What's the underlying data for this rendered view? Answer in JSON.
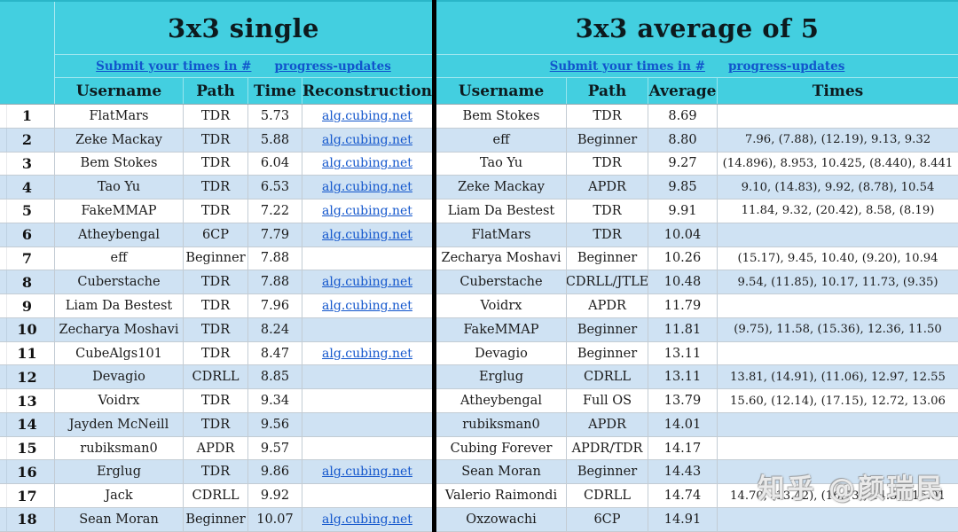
{
  "watermark": "知乎 @颜瑞民",
  "colors": {
    "header_cyan": "#43cfe0",
    "stripe_blue": "#cfe2f3",
    "link_blue": "#1155cc",
    "divider_black": "#000000"
  },
  "left_table": {
    "title": "3x3 single",
    "submit_link": "Submit your times in #",
    "channel_link": "progress-updates",
    "columns": [
      "Username",
      "Path",
      "Time",
      "Reconstruction"
    ],
    "reconstruction_link_label": "alg.cubing.net",
    "rows": [
      {
        "rank": "1",
        "username": "FlatMars",
        "path": "TDR",
        "time": "5.73",
        "reconstruction": true
      },
      {
        "rank": "2",
        "username": "Zeke Mackay",
        "path": "TDR",
        "time": "5.88",
        "reconstruction": true
      },
      {
        "rank": "3",
        "username": "Bem Stokes",
        "path": "TDR",
        "time": "6.04",
        "reconstruction": true
      },
      {
        "rank": "4",
        "username": "Tao Yu",
        "path": "TDR",
        "time": "6.53",
        "reconstruction": true
      },
      {
        "rank": "5",
        "username": "FakeMMAP",
        "path": "TDR",
        "time": "7.22",
        "reconstruction": true
      },
      {
        "rank": "6",
        "username": "Atheybengal",
        "path": "6CP",
        "time": "7.79",
        "reconstruction": true
      },
      {
        "rank": "7",
        "username": "eff",
        "path": "Beginner",
        "time": "7.88",
        "reconstruction": false
      },
      {
        "rank": "8",
        "username": "Cuberstache",
        "path": "TDR",
        "time": "7.88",
        "reconstruction": true
      },
      {
        "rank": "9",
        "username": "Liam Da Bestest",
        "path": "TDR",
        "time": "7.96",
        "reconstruction": true
      },
      {
        "rank": "10",
        "username": "Zecharya Moshavi",
        "path": "TDR",
        "time": "8.24",
        "reconstruction": false
      },
      {
        "rank": "11",
        "username": "CubeAlgs101",
        "path": "TDR",
        "time": "8.47",
        "reconstruction": true
      },
      {
        "rank": "12",
        "username": "Devagio",
        "path": "CDRLL",
        "time": "8.85",
        "reconstruction": false
      },
      {
        "rank": "13",
        "username": "Voidrx",
        "path": "TDR",
        "time": "9.34",
        "reconstruction": false
      },
      {
        "rank": "14",
        "username": "Jayden McNeill",
        "path": "TDR",
        "time": "9.56",
        "reconstruction": false
      },
      {
        "rank": "15",
        "username": "rubiksman0",
        "path": "APDR",
        "time": "9.57",
        "reconstruction": false
      },
      {
        "rank": "16",
        "username": "Erglug",
        "path": "TDR",
        "time": "9.86",
        "reconstruction": true
      },
      {
        "rank": "17",
        "username": "Jack",
        "path": "CDRLL",
        "time": "9.92",
        "reconstruction": false
      },
      {
        "rank": "18",
        "username": "Sean Moran",
        "path": "Beginner",
        "time": "10.07",
        "reconstruction": true
      }
    ]
  },
  "right_table": {
    "title": "3x3 average of 5",
    "submit_link": "Submit your times in #",
    "channel_link": "progress-updates",
    "columns": [
      "Username",
      "Path",
      "Average",
      "Times"
    ],
    "rows": [
      {
        "username": "Bem Stokes",
        "path": "TDR",
        "average": "8.69",
        "times": ""
      },
      {
        "username": "eff",
        "path": "Beginner",
        "average": "8.80",
        "times": "7.96, (7.88), (12.19), 9.13, 9.32"
      },
      {
        "username": "Tao Yu",
        "path": "TDR",
        "average": "9.27",
        "times": "(14.896), 8.953, 10.425, (8.440), 8.441"
      },
      {
        "username": "Zeke Mackay",
        "path": "APDR",
        "average": "9.85",
        "times": "9.10, (14.83), 9.92, (8.78), 10.54"
      },
      {
        "username": "Liam Da Bestest",
        "path": "TDR",
        "average": "9.91",
        "times": "11.84, 9.32, (20.42), 8.58, (8.19)"
      },
      {
        "username": "FlatMars",
        "path": "TDR",
        "average": "10.04",
        "times": ""
      },
      {
        "username": "Zecharya Moshavi",
        "path": "Beginner",
        "average": "10.26",
        "times": "(15.17), 9.45, 10.40, (9.20), 10.94"
      },
      {
        "username": "Cuberstache",
        "path": "CDRLL/JTLE",
        "average": "10.48",
        "times": "9.54, (11.85), 10.17, 11.73, (9.35)"
      },
      {
        "username": "Voidrx",
        "path": "APDR",
        "average": "11.79",
        "times": ""
      },
      {
        "username": "FakeMMAP",
        "path": "Beginner",
        "average": "11.81",
        "times": "(9.75), 11.58, (15.36), 12.36, 11.50"
      },
      {
        "username": "Devagio",
        "path": "Beginner",
        "average": "13.11",
        "times": ""
      },
      {
        "username": "Erglug",
        "path": "CDRLL",
        "average": "13.11",
        "times": "13.81, (14.91), (11.06), 12.97, 12.55"
      },
      {
        "username": "Atheybengal",
        "path": "Full OS",
        "average": "13.79",
        "times": "15.60, (12.14), (17.15), 12.72, 13.06"
      },
      {
        "username": "rubiksman0",
        "path": "APDR",
        "average": "14.01",
        "times": ""
      },
      {
        "username": "Cubing Forever",
        "path": "APDR/TDR",
        "average": "14.17",
        "times": ""
      },
      {
        "username": "Sean Moran",
        "path": "Beginner",
        "average": "14.43",
        "times": ""
      },
      {
        "username": "Valerio Raimondi",
        "path": "CDRLL",
        "average": "14.74",
        "times": "14.70, (13.42), (16.73), 14.51, 15.01"
      },
      {
        "username": "Oxzowachi",
        "path": "6CP",
        "average": "14.91",
        "times": ""
      }
    ]
  }
}
